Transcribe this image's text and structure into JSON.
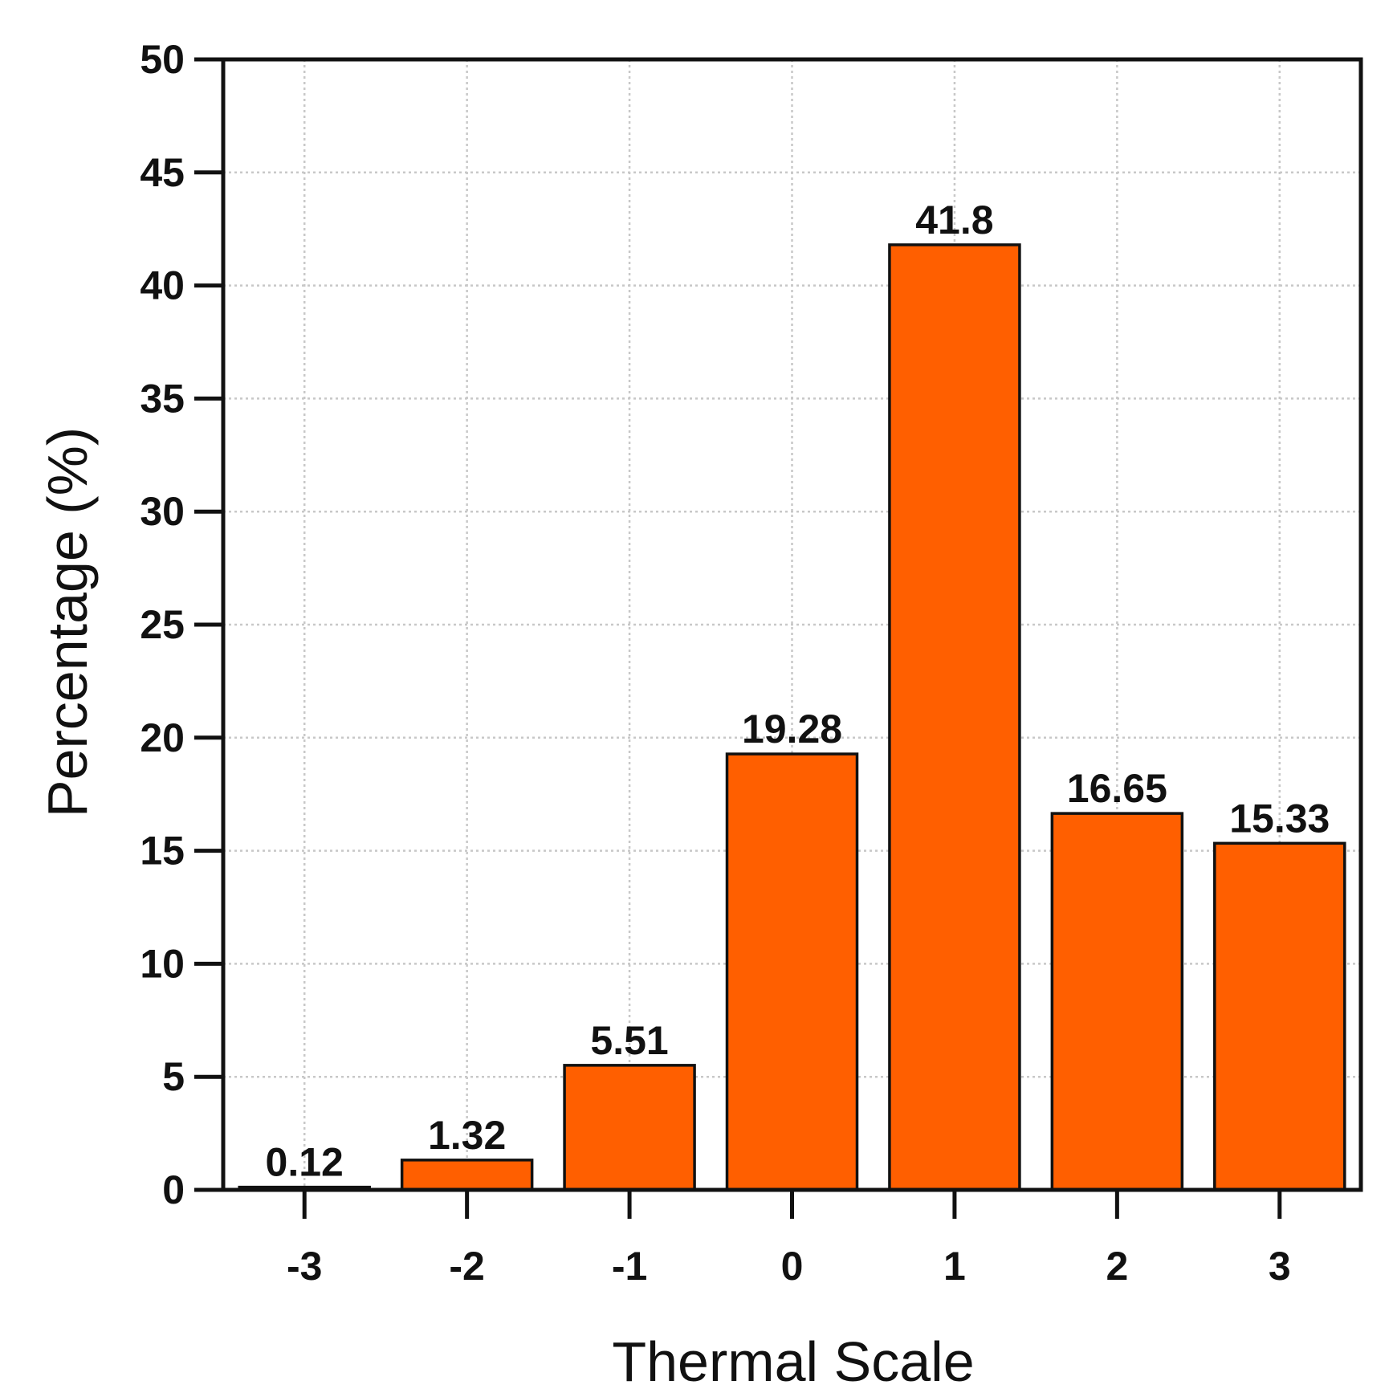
{
  "chart_data": {
    "type": "bar",
    "categories": [
      "-3",
      "-2",
      "-1",
      "0",
      "1",
      "2",
      "3"
    ],
    "values": [
      0.12,
      1.32,
      5.51,
      19.28,
      41.8,
      16.65,
      15.33
    ],
    "data_labels": [
      "0.12",
      "1.32",
      "5.51",
      "19.28",
      "41.8",
      "16.65",
      "15.33"
    ],
    "xlabel": "Thermal Scale",
    "ylabel": "Percentage (%)",
    "ylim": [
      0,
      50
    ],
    "yticks": [
      0,
      5,
      10,
      15,
      20,
      25,
      30,
      35,
      40,
      45,
      50
    ],
    "grid": true,
    "bar_color": "#ff5f00",
    "edge_color": "#111111"
  }
}
